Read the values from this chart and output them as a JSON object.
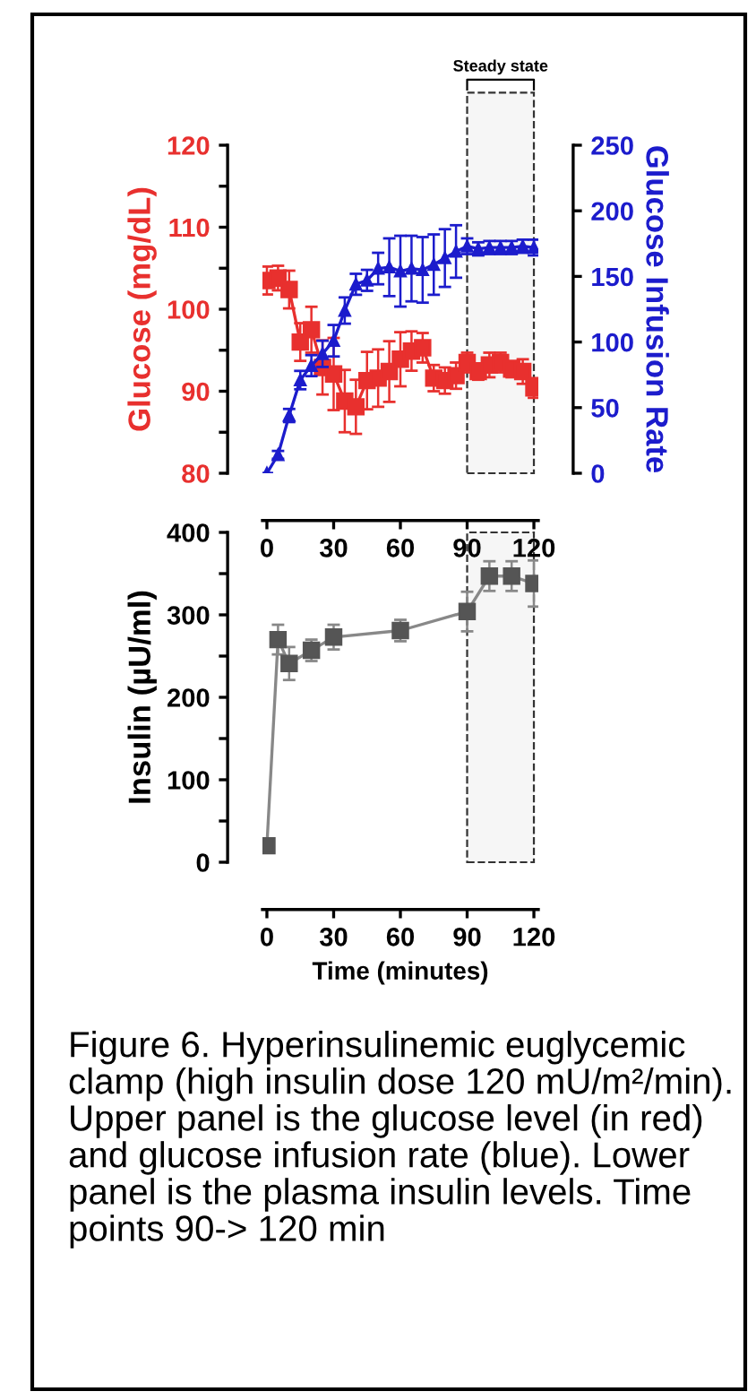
{
  "chart_data": [
    {
      "type": "line",
      "ylabel": "Glucose (mg/dL)",
      "y2label": "Glucose Infusion Rate",
      "x": [
        0,
        5,
        10,
        15,
        20,
        25,
        30,
        35,
        40,
        45,
        50,
        55,
        60,
        65,
        70,
        75,
        80,
        85,
        90,
        95,
        100,
        105,
        110,
        115,
        120
      ],
      "xlim": [
        -2,
        122
      ],
      "xticks": [
        0,
        30,
        60,
        90,
        120
      ],
      "ylim": [
        80,
        120
      ],
      "yticks": [
        80,
        90,
        100,
        110,
        120
      ],
      "y2lim": [
        0,
        250
      ],
      "y2ticks": [
        0,
        50,
        100,
        150,
        200,
        250
      ],
      "series": [
        {
          "color": "#e8302e",
          "marker": "square",
          "values": [
            103.5,
            103.8,
            102.4,
            96.0,
            97.5,
            92.9,
            92.1,
            88.8,
            88.1,
            91.3,
            91.6,
            92.4,
            93.9,
            94.9,
            95.3,
            91.6,
            91.3,
            91.9,
            93.5,
            92.4,
            93.2,
            93.5,
            92.7,
            92.4,
            90.4
          ],
          "errors": [
            1.7,
            1.5,
            2.3,
            2.3,
            2.8,
            3.3,
            4.4,
            3.8,
            3.3,
            3.5,
            3.5,
            3.7,
            3.3,
            2.4,
            1.8,
            1.6,
            1.6,
            1.6,
            1.2,
            1.0,
            1.5,
            1.2,
            1.0,
            1.5,
            1.2
          ]
        },
        {
          "color": "#1c1ccc",
          "marker": "triangle",
          "axis": "y2",
          "values": [
            0,
            14,
            44,
            71,
            82,
            91,
            101,
            124,
            144,
            147,
            156,
            157,
            154,
            156,
            155,
            159,
            164,
            169,
            173,
            171,
            172,
            172,
            172,
            173,
            172
          ],
          "errors": [
            0,
            3,
            5,
            7,
            8,
            10,
            12,
            10,
            8,
            8,
            12,
            22,
            27,
            25,
            25,
            23,
            22,
            20,
            6,
            5,
            5,
            5,
            5,
            5,
            6
          ]
        }
      ],
      "bands": [
        {
          "axis": "x",
          "from": 90,
          "to": 120,
          "label": "Steady state",
          "color": "#f6f6f6"
        }
      ]
    },
    {
      "type": "line",
      "ylabel": "Insulin (µU/ml)",
      "xlabel": "Time (minutes)",
      "x": [
        0,
        5,
        10,
        20,
        30,
        60,
        90,
        100,
        110,
        120
      ],
      "xlim": [
        -2,
        122
      ],
      "xticks": [
        0,
        30,
        60,
        90,
        120
      ],
      "ylim": [
        0,
        400
      ],
      "yticks": [
        0,
        100,
        200,
        300,
        400
      ],
      "series": [
        {
          "color": "#555555",
          "marker": "square",
          "values": [
            20,
            270,
            241,
            257,
            273,
            281,
            304,
            347,
            347,
            338
          ],
          "errors": [
            3,
            18,
            20,
            13,
            15,
            13,
            24,
            18,
            18,
            28
          ]
        }
      ],
      "bands": [
        {
          "axis": "x",
          "from": 90,
          "to": 120,
          "color": "#f6f6f6"
        }
      ],
      "annotations": [
        "Figure 6. Hyperinsulinemic euglycemic clamp (high insulin dose 120 mU/m²/min). Upper panel is the glucose level (in red) and glucose infusion rate (blue). Lower panel is the plasma insulin levels. Time points 90-> 120 min"
      ]
    }
  ]
}
